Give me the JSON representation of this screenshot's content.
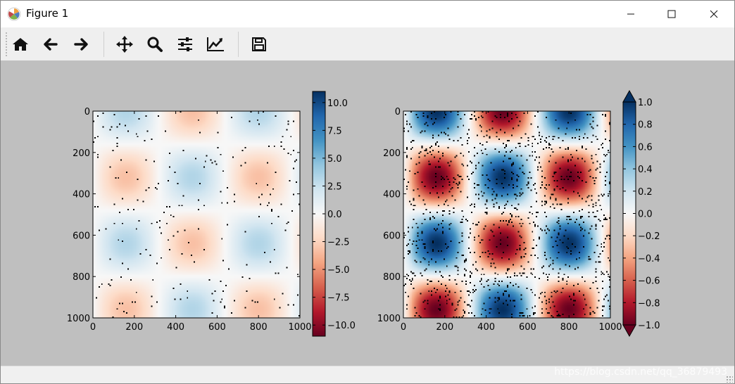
{
  "window": {
    "title": "Figure 1"
  },
  "toolbar": {
    "home": "home-icon",
    "back": "arrow-left-icon",
    "forward": "arrow-right-icon",
    "pan": "move-icon",
    "zoom": "search-icon",
    "subplots": "sliders-icon",
    "axes": "line-chart-icon",
    "save": "save-icon"
  },
  "statusbar": {
    "watermark": "https://blog.csdn.net/qq_36879493"
  },
  "chart_data": [
    {
      "type": "heatmap",
      "field": "sin-cos grid, amplitude about 0.3 (speckled with black dots)",
      "xlim": [
        0,
        1000
      ],
      "ylim": [
        1000,
        0
      ],
      "xticks": [
        "0",
        "200",
        "400",
        "600",
        "800",
        "1000"
      ],
      "yticks": [
        "0",
        "200",
        "400",
        "600",
        "800",
        "1000"
      ],
      "colormap": "RdBu",
      "colorbar": {
        "range": [
          -11,
          11
        ],
        "ticks": [
          "10.0",
          "7.5",
          "5.0",
          "2.5",
          "0.0",
          "−2.5",
          "−5.0",
          "−7.5",
          "−10.0"
        ]
      }
    },
    {
      "type": "heatmap",
      "field": "sin-cos grid, amplitude 1 (speckled with black dots)",
      "xlim": [
        0,
        1000
      ],
      "ylim": [
        1000,
        0
      ],
      "xticks": [
        "0",
        "200",
        "400",
        "600",
        "800",
        "1000"
      ],
      "yticks": [
        "0",
        "200",
        "400",
        "600",
        "800",
        "1000"
      ],
      "colormap": "RdBu",
      "colorbar": {
        "range": [
          -1,
          1
        ],
        "extend": "both",
        "ticks": [
          "1.0",
          "0.8",
          "0.6",
          "0.4",
          "0.2",
          "0.0",
          "−0.2",
          "−0.4",
          "−0.6",
          "−0.8",
          "−1.0"
        ]
      }
    }
  ]
}
